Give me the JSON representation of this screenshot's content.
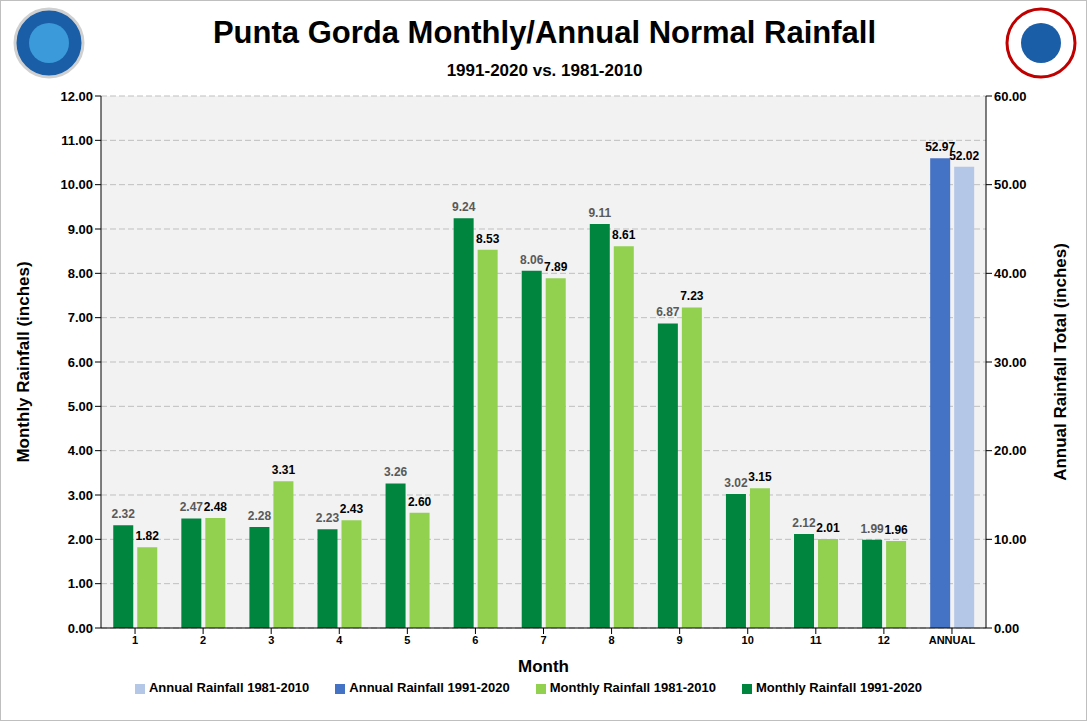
{
  "chart_data": {
    "type": "bar",
    "title": "Punta Gorda Monthly/Annual Normal Rainfall",
    "subtitle": "1991-2020 vs. 1981-2010",
    "x_label": "Month",
    "y_label": "Monthly Rainfall (inches)",
    "y2_label": "Annual Rainfall Total (inches)",
    "categories": [
      "1",
      "2",
      "3",
      "4",
      "5",
      "6",
      "7",
      "8",
      "9",
      "10",
      "11",
      "12",
      "ANNUAL"
    ],
    "series": [
      {
        "name": "Monthly Rainfall 1991-2020",
        "color": "#00853e",
        "values": [
          2.32,
          2.47,
          2.28,
          2.23,
          3.26,
          9.24,
          8.06,
          9.11,
          6.87,
          3.02,
          2.12,
          1.99,
          null
        ],
        "value_labels": [
          "2.32",
          "2.47",
          "2.28",
          "2.23",
          "3.26",
          "9.24",
          "8.06",
          "9.11",
          "6.87",
          "3.02",
          "2.12",
          "1.99",
          null
        ]
      },
      {
        "name": "Monthly Rainfall 1981-2010",
        "color": "#92d050",
        "values": [
          1.82,
          2.48,
          3.31,
          2.43,
          2.6,
          8.53,
          7.89,
          8.61,
          7.23,
          3.15,
          2.01,
          1.96,
          null
        ],
        "value_labels": [
          "1.82",
          "2.48",
          "3.31",
          "2.43",
          "2.60",
          "8.53",
          "7.89",
          "8.61",
          "7.23",
          "3.15",
          "2.01",
          "1.96",
          null
        ]
      },
      {
        "name": "Annual Rainfall 1991-2020",
        "color": "#4472c4",
        "axis": "y2",
        "values": [
          null,
          null,
          null,
          null,
          null,
          null,
          null,
          null,
          null,
          null,
          null,
          null,
          52.97
        ],
        "value_labels": [
          null,
          null,
          null,
          null,
          null,
          null,
          null,
          null,
          null,
          null,
          null,
          null,
          "52.97"
        ]
      },
      {
        "name": "Annual Rainfall 1981-2010",
        "color": "#b4c7e7",
        "axis": "y2",
        "values": [
          null,
          null,
          null,
          null,
          null,
          null,
          null,
          null,
          null,
          null,
          null,
          null,
          52.02
        ],
        "value_labels": [
          null,
          null,
          null,
          null,
          null,
          null,
          null,
          null,
          null,
          null,
          null,
          null,
          "52.02"
        ]
      }
    ],
    "ylim": [
      0,
      12
    ],
    "yticks": [
      {
        "value": 0,
        "label": "0.00"
      },
      {
        "value": 1,
        "label": "1.00"
      },
      {
        "value": 2,
        "label": "2.00"
      },
      {
        "value": 3,
        "label": "3.00"
      },
      {
        "value": 4,
        "label": "4.00"
      },
      {
        "value": 5,
        "label": "5.00"
      },
      {
        "value": 6,
        "label": "6.00"
      },
      {
        "value": 7,
        "label": "7.00"
      },
      {
        "value": 8,
        "label": "8.00"
      },
      {
        "value": 9,
        "label": "9.00"
      },
      {
        "value": 10,
        "label": "10.00"
      },
      {
        "value": 11,
        "label": "11.00"
      },
      {
        "value": 12,
        "label": "12.00"
      }
    ],
    "y2lim": [
      0,
      60
    ],
    "y2ticks": [
      {
        "value": 0,
        "label": "0.00"
      },
      {
        "value": 10,
        "label": "10.00"
      },
      {
        "value": 20,
        "label": "20.00"
      },
      {
        "value": 30,
        "label": "30.00"
      },
      {
        "value": 40,
        "label": "40.00"
      },
      {
        "value": 50,
        "label": "50.00"
      },
      {
        "value": 60,
        "label": "60.00"
      }
    ],
    "grid": true,
    "data_labels": true,
    "legend": "bottom"
  }
}
